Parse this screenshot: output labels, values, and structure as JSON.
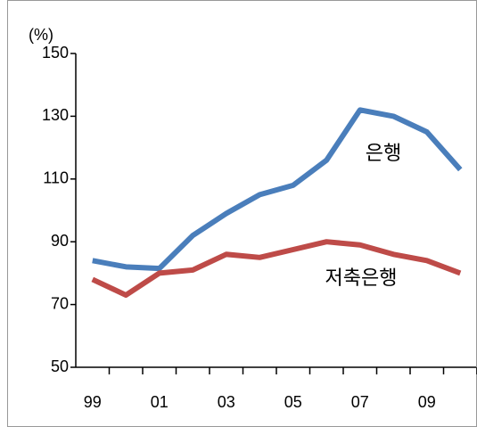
{
  "chart_data": {
    "type": "line",
    "y_label": "(%)",
    "categories": [
      "99",
      null,
      "01",
      null,
      "03",
      null,
      "05",
      null,
      "07",
      null,
      "09",
      null
    ],
    "series": [
      {
        "name": "은행",
        "color": "#4a7ebb",
        "values": [
          84,
          82,
          81.5,
          92,
          99,
          105,
          108,
          116,
          132,
          130,
          125,
          113
        ]
      },
      {
        "name": "저축은행",
        "color": "#be4b48",
        "values": [
          78,
          73,
          80,
          81,
          86,
          85,
          87.5,
          90,
          89,
          86,
          84,
          80
        ]
      }
    ],
    "ylim": [
      50,
      150
    ],
    "yticks": [
      50,
      70,
      90,
      110,
      130,
      150
    ],
    "grid": false
  }
}
